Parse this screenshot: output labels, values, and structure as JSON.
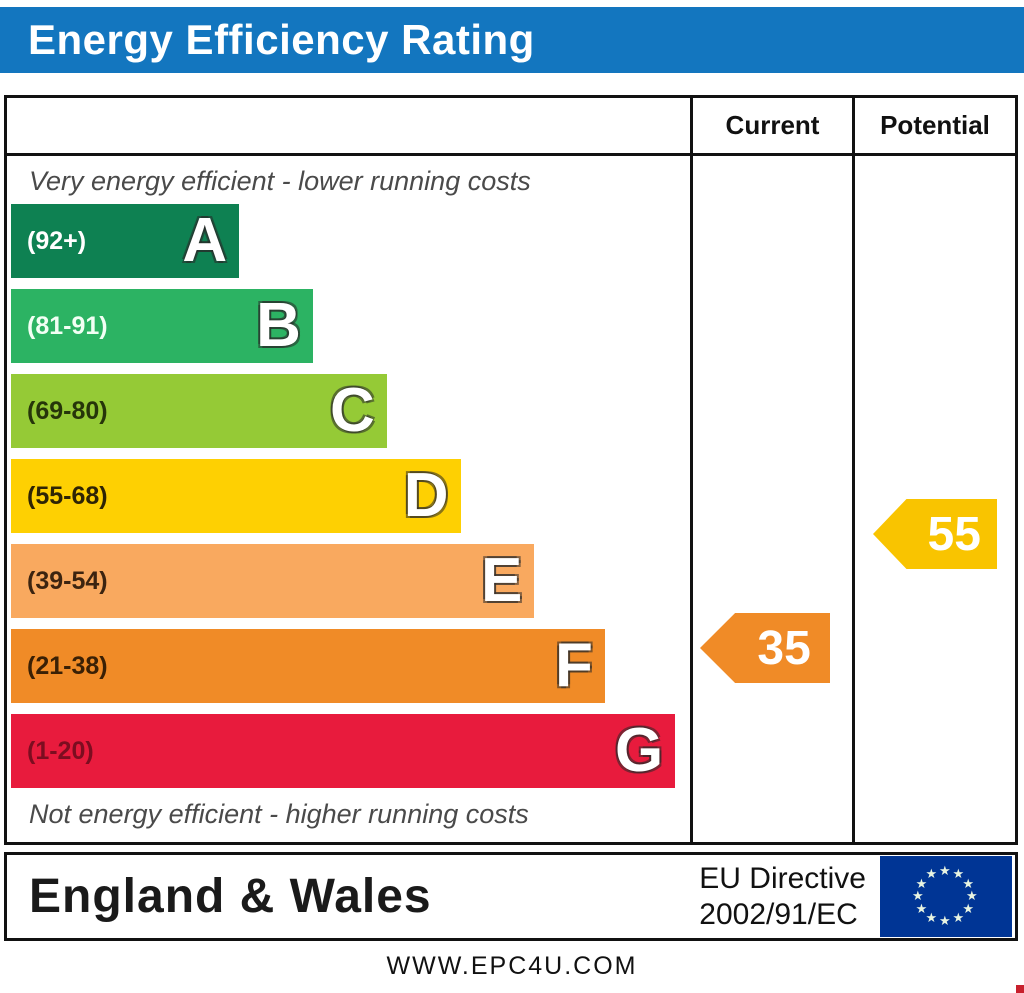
{
  "title": "Energy Efficiency Rating",
  "columns": {
    "current": "Current",
    "potential": "Potential"
  },
  "top_note": "Very energy efficient - lower running costs",
  "bottom_note": "Not energy efficient - higher running costs",
  "bands": [
    {
      "letter": "A",
      "range": "(92+)",
      "color": "#0e8152",
      "width_pct": 34,
      "label_color": "#ffffff"
    },
    {
      "letter": "B",
      "range": "(81-91)",
      "color": "#2cb363",
      "width_pct": 45,
      "label_color": "#f2fff4"
    },
    {
      "letter": "C",
      "range": "(69-80)",
      "color": "#95ca36",
      "width_pct": 56,
      "label_color": "#26350a"
    },
    {
      "letter": "D",
      "range": "(55-68)",
      "color": "#fed002",
      "width_pct": 67,
      "label_color": "#2e2405"
    },
    {
      "letter": "E",
      "range": "(39-54)",
      "color": "#f9a95f",
      "width_pct": 78,
      "label_color": "#3c2410"
    },
    {
      "letter": "F",
      "range": "(21-38)",
      "color": "#f08b27",
      "width_pct": 88.5,
      "label_color": "#3a2005"
    },
    {
      "letter": "G",
      "range": "(1-20)",
      "color": "#e81b3d",
      "width_pct": 99,
      "label_color": "#7c0d20"
    }
  ],
  "current": {
    "value": "35",
    "band": "F",
    "color": "#f08b27"
  },
  "potential": {
    "value": "55",
    "band": "D",
    "color": "#f9c400"
  },
  "footer": {
    "region": "England & Wales",
    "directive_line1": "EU  Directive",
    "directive_line2": "2002/91/EC"
  },
  "eu_flag": {
    "bg": "#003595",
    "star_color": "#e9f5e2",
    "stars": 12
  },
  "website": "WWW.EPC4U.COM",
  "chart_data": {
    "type": "bar",
    "title": "Energy Efficiency Rating",
    "categories": [
      "A",
      "B",
      "C",
      "D",
      "E",
      "F",
      "G"
    ],
    "band_ranges": [
      "92+",
      "81-91",
      "69-80",
      "55-68",
      "39-54",
      "21-38",
      "1-20"
    ],
    "band_colors": [
      "#0e8152",
      "#2cb363",
      "#95ca36",
      "#fed002",
      "#f9a95f",
      "#f08b27",
      "#e81b3d"
    ],
    "bar_length_pct": [
      34,
      45,
      56,
      67,
      78,
      88.5,
      99
    ],
    "series": [
      {
        "name": "Current",
        "value": 35,
        "band": "F",
        "color": "#f08b27"
      },
      {
        "name": "Potential",
        "value": 55,
        "band": "D",
        "color": "#f9c400"
      }
    ],
    "annotations": [
      "Very energy efficient - lower running costs",
      "Not energy efficient - higher running costs"
    ],
    "region": "England & Wales",
    "directive": "EU Directive 2002/91/EC",
    "source": "WWW.EPC4U.COM"
  }
}
